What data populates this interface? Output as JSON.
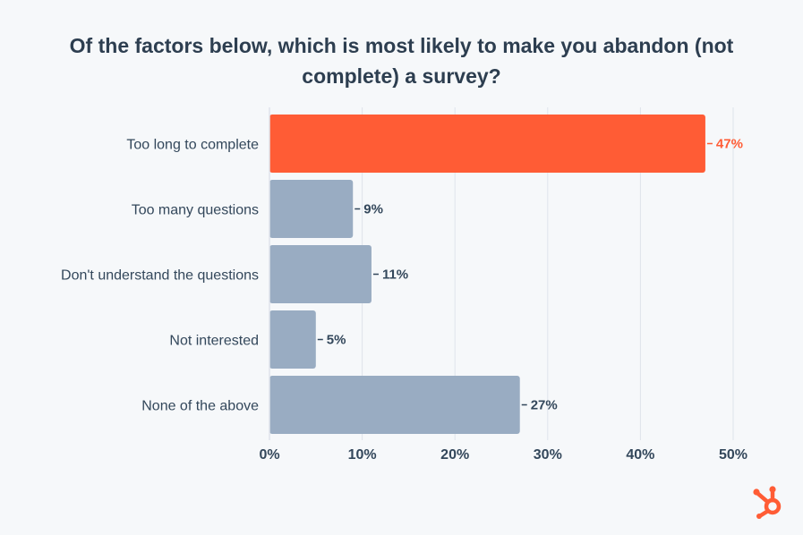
{
  "chart_data": {
    "type": "bar",
    "orientation": "horizontal",
    "title": "Of the factors below, which is most likely to make you abandon (not complete) a survey?",
    "categories": [
      "Too long to complete",
      "Too many questions",
      "Don't understand the questions",
      "Not interested",
      "None of the above"
    ],
    "values": [
      47,
      9,
      11,
      5,
      27
    ],
    "value_labels": [
      "47%",
      "9%",
      "11%",
      "5%",
      "27%"
    ],
    "highlight_index": 0,
    "xlim": [
      0,
      50
    ],
    "xticks": [
      0,
      10,
      20,
      30,
      40,
      50
    ],
    "xtick_labels": [
      "0%",
      "10%",
      "20%",
      "30%",
      "40%",
      "50%"
    ],
    "grid": true,
    "colors": {
      "highlight": "#ff5c35",
      "bar": "#99acc2",
      "text": "#33475b",
      "grid": "#dfe3eb"
    }
  },
  "logo": {
    "icon": "hubspot-sprocket-icon",
    "color": "#ff5c35"
  }
}
